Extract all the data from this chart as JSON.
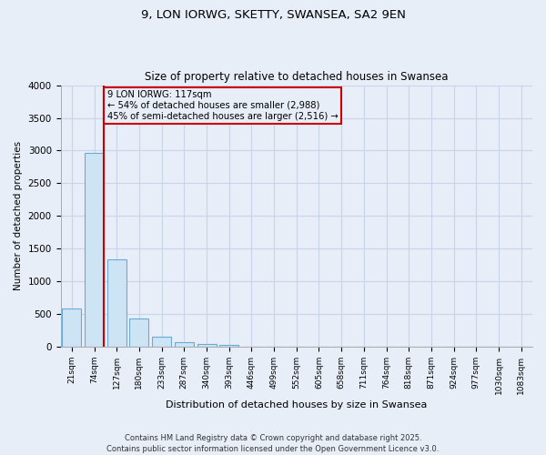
{
  "title_line1": "9, LON IORWG, SKETTY, SWANSEA, SA2 9EN",
  "title_line2": "Size of property relative to detached houses in Swansea",
  "xlabel": "Distribution of detached houses by size in Swansea",
  "ylabel": "Number of detached properties",
  "footer_line1": "Contains HM Land Registry data © Crown copyright and database right 2025.",
  "footer_line2": "Contains public sector information licensed under the Open Government Licence v3.0.",
  "categories": [
    "21sqm",
    "74sqm",
    "127sqm",
    "180sqm",
    "233sqm",
    "287sqm",
    "340sqm",
    "393sqm",
    "446sqm",
    "499sqm",
    "552sqm",
    "605sqm",
    "658sqm",
    "711sqm",
    "764sqm",
    "818sqm",
    "871sqm",
    "924sqm",
    "977sqm",
    "1030sqm",
    "1083sqm"
  ],
  "values": [
    580,
    2970,
    1340,
    430,
    150,
    75,
    45,
    30,
    0,
    0,
    0,
    0,
    0,
    0,
    0,
    0,
    0,
    0,
    0,
    0,
    0
  ],
  "bar_color": "#cde4f5",
  "bar_edge_color": "#6aabd6",
  "grid_color": "#c8d4e8",
  "background_color": "#e8eef8",
  "vline_color": "#cc0000",
  "annotation_text": "9 LON IORWG: 117sqm\n← 54% of detached houses are smaller (2,988)\n45% of semi-detached houses are larger (2,516) →",
  "annotation_box_color": "#cc0000",
  "ylim": [
    0,
    4000
  ],
  "yticks": [
    0,
    500,
    1000,
    1500,
    2000,
    2500,
    3000,
    3500,
    4000
  ]
}
